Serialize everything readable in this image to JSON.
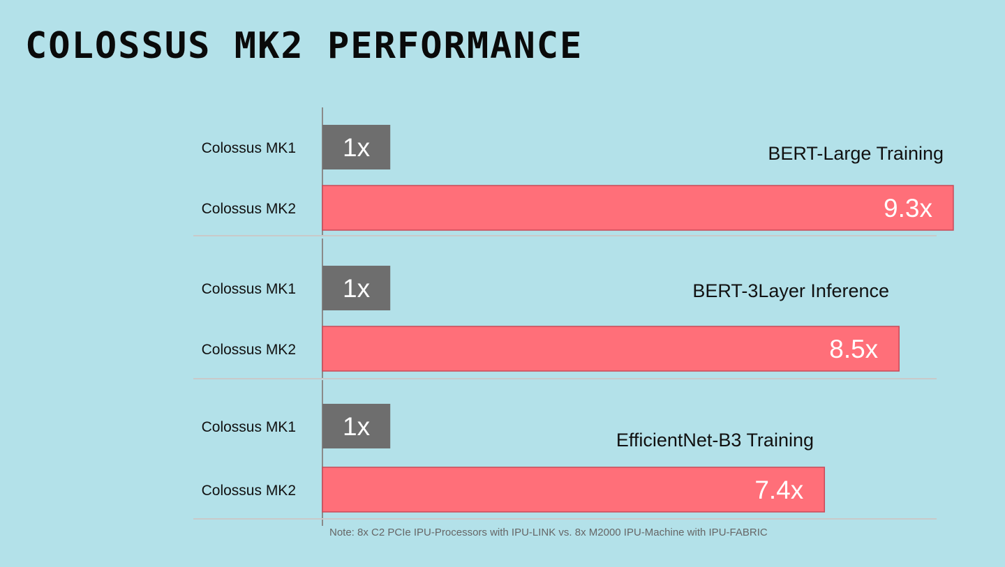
{
  "title": "COLOSSUS MK2 PERFORMANCE",
  "note": "Note:  8x C2 PCIe IPU-Processors with IPU-LINK vs. 8x M2000 IPU-Machine with IPU-FABRIC",
  "colors": {
    "background": "#b3e1e9",
    "mk1_bar": "#6e6e6e",
    "mk2_bar": "#ff6f79",
    "mk2_bar_border": "#c84a58",
    "axis": "#8a8a8a",
    "separator": "#c9c9c9",
    "bar_label": "#ffffff",
    "text": "#111111"
  },
  "chart_data": [
    {
      "type": "bar",
      "orientation": "horizontal",
      "title": "BERT-Large Training",
      "categories": [
        "Colossus MK1",
        "Colossus MK2"
      ],
      "values": [
        1,
        9.3
      ],
      "data_labels": [
        "1x",
        "9.3x"
      ]
    },
    {
      "type": "bar",
      "orientation": "horizontal",
      "title": "BERT-3Layer Inference",
      "categories": [
        "Colossus MK1",
        "Colossus MK2"
      ],
      "values": [
        1,
        8.5
      ],
      "data_labels": [
        "1x",
        "8.5x"
      ]
    },
    {
      "type": "bar",
      "orientation": "horizontal",
      "title": "EfficientNet-B3 Training",
      "categories": [
        "Colossus MK1",
        "Colossus MK2"
      ],
      "values": [
        1,
        7.4
      ],
      "data_labels": [
        "1x",
        "7.4x"
      ]
    }
  ]
}
